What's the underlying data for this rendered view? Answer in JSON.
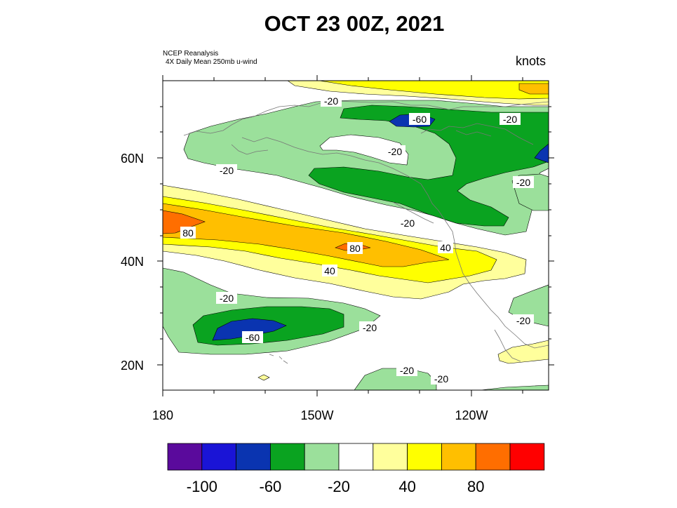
{
  "title": "OCT 23 00Z, 2021",
  "source_line1": "NCEP Reanalysis",
  "source_line2": "4X Daily Mean 250mb u-wind",
  "units": "knots",
  "axes": {
    "lat_labels": [
      "60N",
      "40N",
      "20N"
    ],
    "lon_labels": [
      "180",
      "150W",
      "120W"
    ]
  },
  "contour_labels": [
    "-20",
    "-60",
    "-20",
    "-20",
    "-20",
    "-20",
    "-20",
    "80",
    "80",
    "40",
    "40",
    "-20",
    "-20",
    "-60",
    "-20",
    "-20",
    "-20"
  ],
  "colorbar": {
    "colors": [
      "#5a0a9c",
      "#1a14d6",
      "#0a34b0",
      "#0aa320",
      "#9be09b",
      "#ffffff",
      "#ffff9c",
      "#ffff00",
      "#ffbf00",
      "#ff6e00",
      "#ff0000"
    ],
    "labels": [
      "-100",
      "-60",
      "-20",
      "40",
      "80"
    ]
  }
}
